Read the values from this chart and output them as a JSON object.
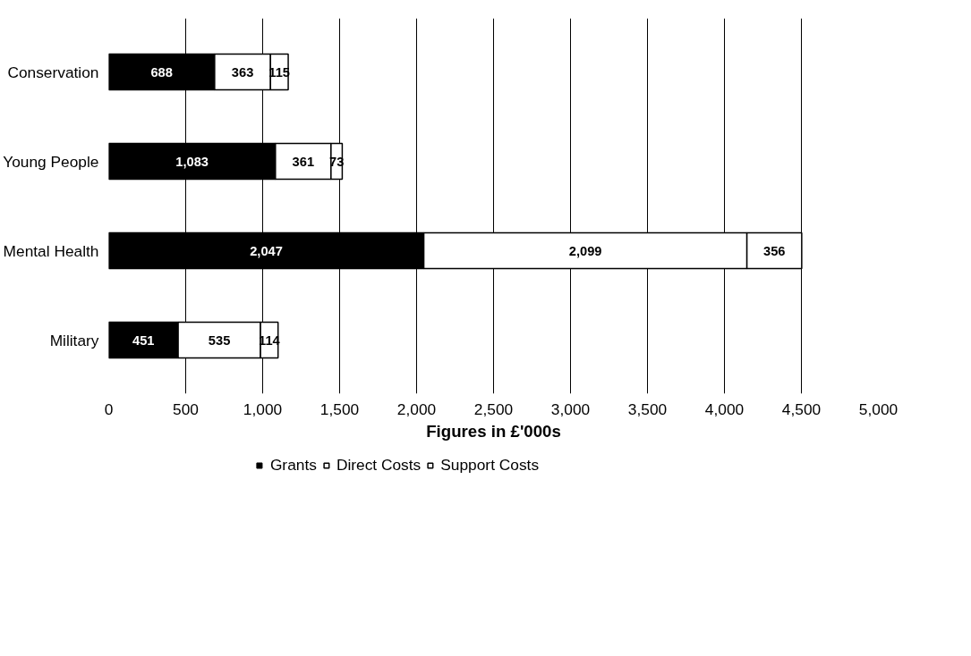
{
  "chart_data": {
    "type": "bar",
    "orientation": "horizontal",
    "stacked": true,
    "categories": [
      "Conservation",
      "Young People",
      "Mental Health",
      "Military"
    ],
    "series": [
      {
        "name": "Grants",
        "color": "#000000",
        "values": [
          688,
          1083,
          2047,
          451
        ],
        "value_labels": [
          "688",
          "1,083",
          "2,047",
          "451"
        ]
      },
      {
        "name": "Direct Costs",
        "color": "#ffffff",
        "values": [
          363,
          361,
          2099,
          535
        ],
        "value_labels": [
          "363",
          "361",
          "2,099",
          "535"
        ]
      },
      {
        "name": "Support Costs",
        "color": "#ffffff",
        "values": [
          115,
          73,
          356,
          114
        ],
        "value_labels": [
          "115",
          "73",
          "356",
          "114"
        ]
      }
    ],
    "xlabel": "Figures in £'000s",
    "xlim": [
      0,
      5000
    ],
    "xticks": [
      0,
      500,
      {
        "value": 1000,
        "label": "1,000"
      },
      {
        "value": 1500,
        "label": "1,500"
      },
      {
        "value": 2000,
        "label": "2,000"
      },
      {
        "value": 2500,
        "label": "2,500"
      },
      {
        "value": 3000,
        "label": "3,000"
      },
      {
        "value": 3500,
        "label": "3,500"
      },
      {
        "value": 4000,
        "label": "4,000"
      },
      {
        "value": 4500,
        "label": "4,500"
      },
      {
        "value": 5000,
        "label": "5,000"
      }
    ],
    "grid": "x",
    "legend": "bottom"
  }
}
